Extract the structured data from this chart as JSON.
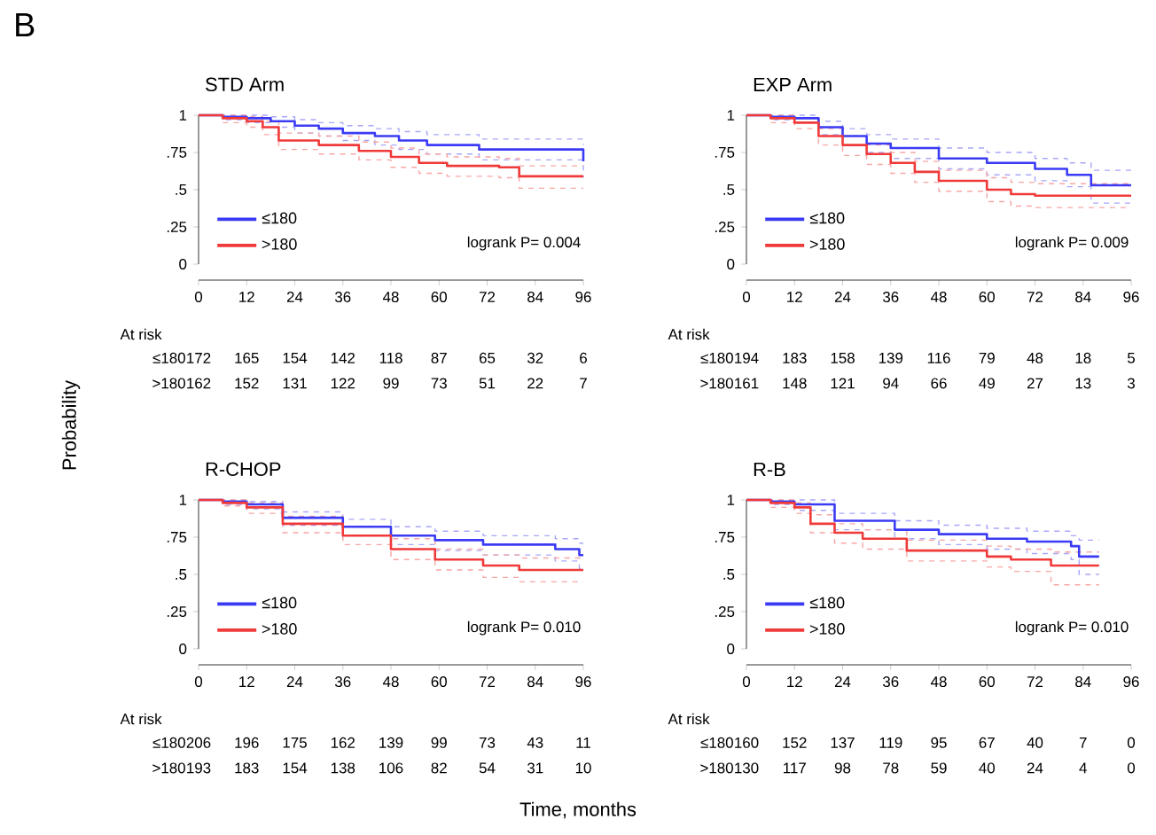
{
  "chart_data": [
    {
      "type": "step",
      "title": "STD Arm",
      "ylabel": "Probability",
      "xlim": [
        0,
        96
      ],
      "ylim": [
        0,
        1
      ],
      "xticks": [
        0,
        12,
        24,
        36,
        48,
        60,
        72,
        84,
        96
      ],
      "yticks": [
        0,
        {
          "value": 0.25,
          "label": ".25"
        },
        {
          "value": 0.5,
          "label": ".5"
        },
        {
          "value": 0.75,
          "label": ".75"
        },
        1
      ],
      "legend": "bottom left",
      "series": [
        {
          "name": "≤180",
          "color": "#3b3bf5",
          "line_style": "solid",
          "x": [
            0,
            6,
            12,
            18,
            24,
            30,
            36,
            44,
            50,
            57,
            70,
            95,
            96
          ],
          "values": [
            1,
            0.99,
            0.98,
            0.96,
            0.93,
            0.91,
            0.88,
            0.86,
            0.83,
            0.8,
            0.77,
            0.77,
            0.69
          ]
        },
        {
          "name": ">180",
          "color": "#f03a3a",
          "line_style": "solid",
          "x": [
            0,
            6,
            12,
            16,
            20,
            30,
            40,
            48,
            55,
            62,
            75,
            80,
            96
          ],
          "values": [
            1,
            0.98,
            0.96,
            0.92,
            0.83,
            0.8,
            0.76,
            0.72,
            0.68,
            0.66,
            0.65,
            0.59,
            0.59
          ]
        },
        {
          "color": "#a7a7fa",
          "line_style": "dashed",
          "x": [
            0,
            6,
            12,
            18,
            24,
            30,
            36,
            44,
            50,
            57,
            70,
            95,
            96
          ],
          "values": [
            1,
            1,
            1,
            0.99,
            0.97,
            0.95,
            0.93,
            0.91,
            0.89,
            0.87,
            0.84,
            0.84,
            0.8
          ]
        },
        {
          "color": "#a7a7fa",
          "line_style": "dashed",
          "x": [
            0,
            6,
            12,
            18,
            24,
            30,
            36,
            44,
            50,
            57,
            70,
            95,
            96
          ],
          "values": [
            1,
            0.97,
            0.95,
            0.92,
            0.88,
            0.86,
            0.83,
            0.8,
            0.77,
            0.74,
            0.7,
            0.7,
            0.58
          ]
        },
        {
          "color": "#f8a6a6",
          "line_style": "dashed",
          "x": [
            0,
            6,
            12,
            16,
            20,
            30,
            40,
            48,
            55,
            62,
            75,
            80,
            96
          ],
          "values": [
            1,
            1,
            0.99,
            0.96,
            0.88,
            0.86,
            0.82,
            0.78,
            0.74,
            0.72,
            0.71,
            0.66,
            0.66
          ]
        },
        {
          "color": "#f8a6a6",
          "line_style": "dashed",
          "x": [
            0,
            6,
            12,
            16,
            20,
            30,
            40,
            48,
            55,
            62,
            75,
            80,
            96
          ],
          "values": [
            1,
            0.95,
            0.92,
            0.87,
            0.77,
            0.74,
            0.7,
            0.65,
            0.61,
            0.59,
            0.58,
            0.51,
            0.51
          ]
        }
      ],
      "annotations": [
        "logrank P= 0.004",
        "At risk",
        "≤180",
        "172",
        "165",
        "154",
        "142",
        "118",
        "87",
        "65",
        "32",
        "6",
        ">180",
        "162",
        "152",
        "131",
        "122",
        "99",
        "73",
        "51",
        "22",
        "7",
        "B"
      ]
    },
    {
      "type": "step",
      "title": "EXP Arm",
      "xlim": [
        0,
        96
      ],
      "ylim": [
        0,
        1
      ],
      "xticks": [
        0,
        12,
        24,
        36,
        48,
        60,
        72,
        84,
        96
      ],
      "yticks": [
        0,
        {
          "value": 0.25,
          "label": ".25"
        },
        {
          "value": 0.5,
          "label": ".5"
        },
        {
          "value": 0.75,
          "label": ".75"
        },
        1
      ],
      "legend": "bottom left",
      "series": [
        {
          "name": "≤180",
          "color": "#3b3bf5",
          "line_style": "solid",
          "x": [
            0,
            6,
            12,
            18,
            24,
            30,
            36,
            48,
            60,
            72,
            80,
            86,
            96
          ],
          "values": [
            1,
            0.99,
            0.98,
            0.92,
            0.86,
            0.81,
            0.78,
            0.71,
            0.68,
            0.64,
            0.6,
            0.53,
            0.53
          ]
        },
        {
          "name": ">180",
          "color": "#f03a3a",
          "line_style": "solid",
          "x": [
            0,
            6,
            12,
            18,
            24,
            30,
            36,
            42,
            48,
            60,
            66,
            72,
            96
          ],
          "values": [
            1,
            0.98,
            0.95,
            0.86,
            0.8,
            0.74,
            0.68,
            0.62,
            0.56,
            0.5,
            0.47,
            0.46,
            0.46
          ]
        },
        {
          "color": "#a7a7fa",
          "line_style": "dashed",
          "x": [
            0,
            6,
            12,
            18,
            24,
            30,
            36,
            48,
            60,
            72,
            80,
            86,
            96
          ],
          "values": [
            1,
            1,
            1,
            0.96,
            0.91,
            0.87,
            0.84,
            0.78,
            0.75,
            0.71,
            0.68,
            0.63,
            0.63
          ]
        },
        {
          "color": "#a7a7fa",
          "line_style": "dashed",
          "x": [
            0,
            6,
            12,
            18,
            24,
            30,
            36,
            48,
            60,
            72,
            80,
            86,
            96
          ],
          "values": [
            1,
            0.97,
            0.95,
            0.87,
            0.8,
            0.75,
            0.71,
            0.64,
            0.6,
            0.56,
            0.52,
            0.41,
            0.41
          ]
        },
        {
          "color": "#f8a6a6",
          "line_style": "dashed",
          "x": [
            0,
            6,
            12,
            18,
            24,
            30,
            36,
            42,
            48,
            60,
            66,
            72,
            96
          ],
          "values": [
            1,
            1,
            0.98,
            0.91,
            0.86,
            0.8,
            0.75,
            0.69,
            0.63,
            0.58,
            0.55,
            0.54,
            0.54
          ]
        },
        {
          "color": "#f8a6a6",
          "line_style": "dashed",
          "x": [
            0,
            6,
            12,
            18,
            24,
            30,
            36,
            42,
            48,
            60,
            66,
            72,
            96
          ],
          "values": [
            1,
            0.95,
            0.91,
            0.8,
            0.73,
            0.67,
            0.61,
            0.55,
            0.49,
            0.42,
            0.39,
            0.38,
            0.38
          ]
        }
      ],
      "annotations": [
        "logrank P= 0.009",
        "At risk",
        "≤180",
        "194",
        "183",
        "158",
        "139",
        "116",
        "79",
        "48",
        "18",
        "5",
        ">180",
        "161",
        "148",
        "121",
        "94",
        "66",
        "49",
        "27",
        "13",
        "3"
      ]
    },
    {
      "type": "step",
      "title": "R-CHOP",
      "xlabel": "Time, months",
      "xlim": [
        0,
        96
      ],
      "ylim": [
        0,
        1
      ],
      "xticks": [
        0,
        12,
        24,
        36,
        48,
        60,
        72,
        84,
        96
      ],
      "yticks": [
        0,
        {
          "value": 0.25,
          "label": ".25"
        },
        {
          "value": 0.5,
          "label": ".5"
        },
        {
          "value": 0.75,
          "label": ".75"
        },
        1
      ],
      "legend": "bottom left",
      "series": [
        {
          "name": "≤180",
          "color": "#3b3bf5",
          "line_style": "solid",
          "x": [
            0,
            6,
            12,
            21,
            36,
            48,
            59,
            71,
            89,
            95,
            96
          ],
          "values": [
            1,
            0.99,
            0.97,
            0.88,
            0.82,
            0.76,
            0.73,
            0.7,
            0.67,
            0.63,
            0.63
          ]
        },
        {
          "name": ">180",
          "color": "#f03a3a",
          "line_style": "solid",
          "x": [
            0,
            6,
            12,
            21,
            36,
            48,
            59,
            71,
            80,
            96
          ],
          "values": [
            1,
            0.98,
            0.95,
            0.84,
            0.76,
            0.67,
            0.6,
            0.56,
            0.53,
            0.53
          ]
        },
        {
          "color": "#a7a7fa",
          "line_style": "dashed",
          "x": [
            0,
            6,
            12,
            21,
            36,
            48,
            59,
            71,
            89,
            95,
            96
          ],
          "values": [
            1,
            1,
            0.99,
            0.92,
            0.87,
            0.82,
            0.79,
            0.76,
            0.74,
            0.71,
            0.71
          ]
        },
        {
          "color": "#a7a7fa",
          "line_style": "dashed",
          "x": [
            0,
            6,
            12,
            21,
            36,
            48,
            59,
            71,
            89,
            95,
            96
          ],
          "values": [
            1,
            0.97,
            0.94,
            0.83,
            0.76,
            0.7,
            0.66,
            0.63,
            0.59,
            0.54,
            0.54
          ]
        },
        {
          "color": "#f8a6a6",
          "line_style": "dashed",
          "x": [
            0,
            6,
            12,
            21,
            36,
            48,
            59,
            71,
            80,
            96
          ],
          "values": [
            1,
            1,
            0.98,
            0.89,
            0.82,
            0.74,
            0.67,
            0.63,
            0.61,
            0.61
          ]
        },
        {
          "color": "#f8a6a6",
          "line_style": "dashed",
          "x": [
            0,
            6,
            12,
            21,
            36,
            48,
            59,
            71,
            80,
            96
          ],
          "values": [
            1,
            0.96,
            0.91,
            0.78,
            0.7,
            0.6,
            0.53,
            0.48,
            0.45,
            0.45
          ]
        }
      ],
      "annotations": [
        "logrank P= 0.010",
        "At risk",
        "≤180",
        "206",
        "196",
        "175",
        "162",
        "139",
        "99",
        "73",
        "43",
        "11",
        ">180",
        "193",
        "183",
        "154",
        "138",
        "106",
        "82",
        "54",
        "31",
        "10"
      ]
    },
    {
      "type": "step",
      "title": "R-B",
      "xlim": [
        0,
        96
      ],
      "ylim": [
        0,
        1
      ],
      "xticks": [
        0,
        12,
        24,
        36,
        48,
        60,
        72,
        84,
        96
      ],
      "yticks": [
        0,
        {
          "value": 0.25,
          "label": ".25"
        },
        {
          "value": 0.5,
          "label": ".5"
        },
        {
          "value": 0.75,
          "label": ".75"
        },
        1
      ],
      "legend": "bottom left",
      "series": [
        {
          "name": "≤180",
          "color": "#3b3bf5",
          "line_style": "solid",
          "x": [
            0,
            6,
            12,
            22,
            37,
            48,
            60,
            70,
            81,
            83,
            88
          ],
          "values": [
            1,
            0.99,
            0.97,
            0.86,
            0.8,
            0.77,
            0.74,
            0.72,
            0.69,
            0.62,
            0.62
          ]
        },
        {
          "name": ">180",
          "color": "#f03a3a",
          "line_style": "solid",
          "x": [
            0,
            6,
            12,
            16,
            22,
            29,
            40,
            60,
            66,
            76,
            88
          ],
          "values": [
            1,
            0.98,
            0.95,
            0.84,
            0.78,
            0.74,
            0.66,
            0.62,
            0.6,
            0.56,
            0.56
          ]
        },
        {
          "color": "#a7a7fa",
          "line_style": "dashed",
          "x": [
            0,
            6,
            12,
            22,
            37,
            48,
            60,
            70,
            81,
            83,
            88
          ],
          "values": [
            1,
            1,
            1,
            0.91,
            0.86,
            0.83,
            0.81,
            0.79,
            0.76,
            0.73,
            0.73
          ]
        },
        {
          "color": "#a7a7fa",
          "line_style": "dashed",
          "x": [
            0,
            6,
            12,
            22,
            37,
            48,
            60,
            70,
            81,
            83,
            88
          ],
          "values": [
            1,
            0.97,
            0.93,
            0.8,
            0.74,
            0.7,
            0.67,
            0.64,
            0.6,
            0.5,
            0.5
          ]
        },
        {
          "color": "#f8a6a6",
          "line_style": "dashed",
          "x": [
            0,
            6,
            12,
            16,
            22,
            29,
            40,
            60,
            66,
            76,
            88
          ],
          "values": [
            1,
            1,
            0.98,
            0.9,
            0.84,
            0.8,
            0.73,
            0.69,
            0.67,
            0.65,
            0.65
          ]
        },
        {
          "color": "#f8a6a6",
          "line_style": "dashed",
          "x": [
            0,
            6,
            12,
            16,
            22,
            29,
            40,
            60,
            66,
            76,
            88
          ],
          "values": [
            1,
            0.95,
            0.91,
            0.78,
            0.71,
            0.67,
            0.59,
            0.55,
            0.52,
            0.43,
            0.43
          ]
        }
      ],
      "annotations": [
        "logrank P= 0.010",
        "At risk",
        "≤180",
        "160",
        "152",
        "137",
        "119",
        "95",
        "67",
        "40",
        "7",
        "0",
        ">180",
        "130",
        "117",
        "98",
        "78",
        "59",
        "40",
        "24",
        "4",
        "0"
      ]
    }
  ]
}
